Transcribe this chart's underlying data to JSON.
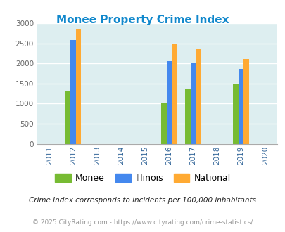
{
  "title": "Monee Property Crime Index",
  "title_color": "#1188cc",
  "years": [
    2011,
    2012,
    2013,
    2014,
    2015,
    2016,
    2017,
    2018,
    2019,
    2020
  ],
  "data": {
    "2012": {
      "monee": 1330,
      "illinois": 2580,
      "national": 2860
    },
    "2016": {
      "monee": 1030,
      "illinois": 2050,
      "national": 2470
    },
    "2017": {
      "monee": 1360,
      "illinois": 2020,
      "national": 2360
    },
    "2019": {
      "monee": 1480,
      "illinois": 1860,
      "national": 2100
    }
  },
  "bar_width": 0.22,
  "colors": {
    "monee": "#77bb33",
    "illinois": "#4488ee",
    "national": "#ffaa33"
  },
  "ylim": [
    0,
    3000
  ],
  "yticks": [
    0,
    500,
    1000,
    1500,
    2000,
    2500,
    3000
  ],
  "background_color": "#ddeef0",
  "grid_color": "#ffffff",
  "xtick_color": "#336699",
  "ytick_color": "#666666",
  "legend_labels": [
    "Monee",
    "Illinois",
    "National"
  ],
  "footnote1": "Crime Index corresponds to incidents per 100,000 inhabitants",
  "footnote2": "© 2025 CityRating.com - https://www.cityrating.com/crime-statistics/",
  "footnote1_color": "#222222",
  "footnote2_color": "#999999"
}
